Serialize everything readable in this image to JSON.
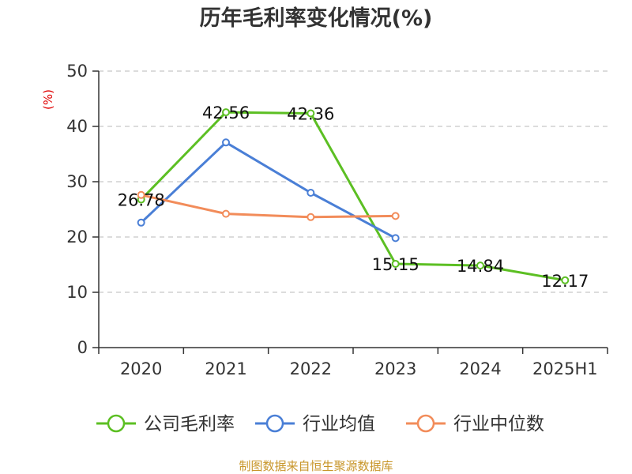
{
  "chart_data": {
    "type": "line",
    "title": "历年毛利率变化情况(%)",
    "ylabel": "(%)",
    "categories": [
      "2020",
      "2021",
      "2022",
      "2023",
      "2024",
      "2025H1"
    ],
    "ylim": [
      0,
      50
    ],
    "yticks": [
      "0",
      "10",
      "20",
      "30",
      "40",
      "50"
    ],
    "grid": true,
    "legend_position": "bottom",
    "series": [
      {
        "name": "公司毛利率",
        "color": "#5cbf23",
        "values": [
          26.78,
          42.56,
          42.36,
          15.15,
          14.84,
          12.17
        ],
        "labels": [
          "26.78",
          "42.56",
          "42.36",
          "15.15",
          "14.84",
          "12.17"
        ]
      },
      {
        "name": "行业均值",
        "color": "#4a7fd6",
        "values": [
          22.6,
          37.1,
          28.0,
          19.8,
          null,
          null
        ]
      },
      {
        "name": "行业中位数",
        "color": "#f28c5a",
        "values": [
          27.6,
          24.2,
          23.6,
          23.8,
          null,
          null
        ]
      }
    ],
    "source": "制图数据来自恒生聚源数据库"
  }
}
